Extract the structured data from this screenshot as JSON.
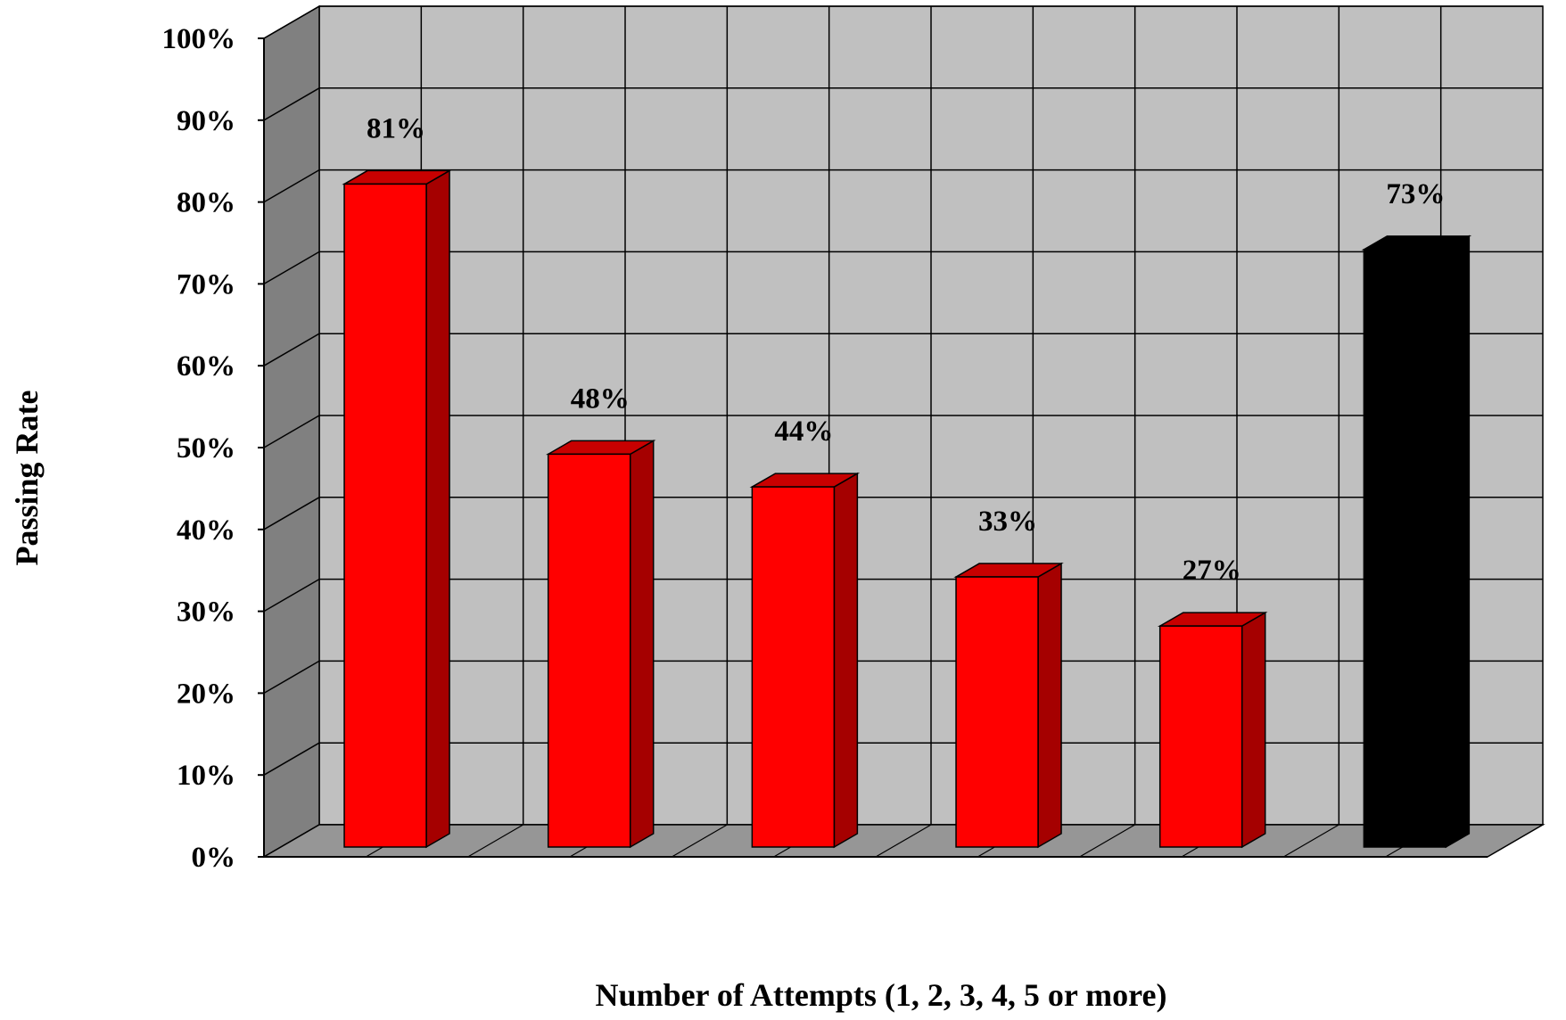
{
  "chart_data": {
    "type": "bar",
    "title": "",
    "xlabel": "Number of Attempts (1, 2, 3, 4, 5 or more)",
    "ylabel": "Passing Rate",
    "ylim": [
      0,
      100
    ],
    "y_tick_values": [
      0,
      10,
      20,
      30,
      40,
      50,
      60,
      70,
      80,
      90,
      100
    ],
    "y_tick_labels": [
      "0%",
      "10%",
      "20%",
      "30%",
      "40%",
      "50%",
      "60%",
      "70%",
      "80%",
      "90%",
      "100%"
    ],
    "categories": [
      "",
      "",
      "",
      "",
      "",
      ""
    ],
    "values": [
      81,
      48,
      44,
      33,
      27,
      73
    ],
    "data_labels": [
      "81%",
      "48%",
      "44%",
      "33%",
      "27%",
      "73%"
    ],
    "bar_colors": [
      "#ff0000",
      "#ff0000",
      "#ff0000",
      "#ff0000",
      "#ff0000",
      "#000000"
    ],
    "grid": true,
    "legend": "none",
    "style": "3d"
  },
  "colors": {
    "back_wall": "#c0c0c0",
    "side_wall": "#808080",
    "floor": "#969696",
    "grid_line": "#000000",
    "red_front": "#ff0000",
    "red_side": "#a50000",
    "red_top": "#c80000",
    "black_front": "#000000",
    "black_side": "#000000",
    "black_top": "#000000"
  }
}
